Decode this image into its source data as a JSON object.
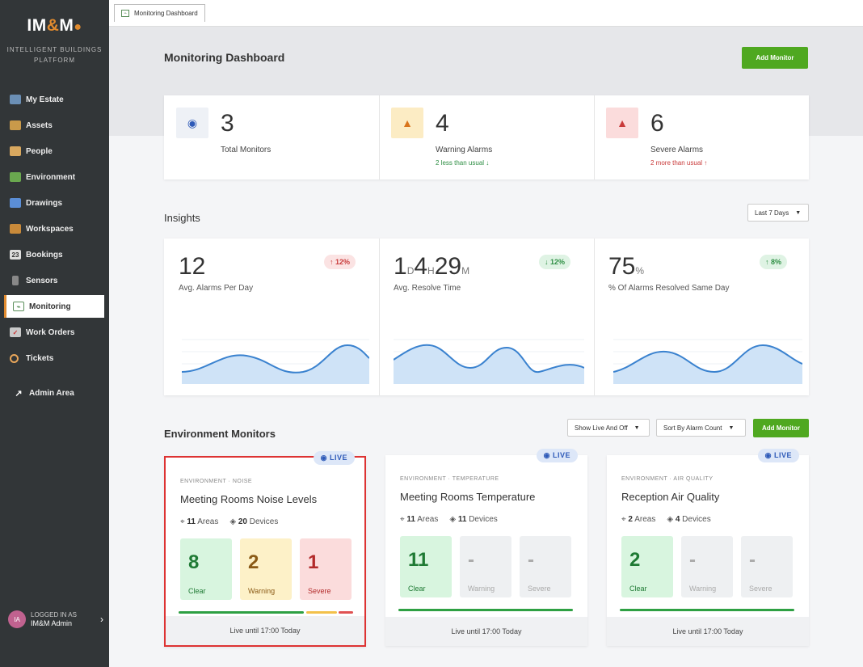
{
  "sidebar": {
    "logo_main": "IM",
    "logo_amp": "&",
    "logo_end": "M",
    "subtitle": "INTELLIGENT BUILDINGS PLATFORM",
    "items": [
      {
        "label": "My Estate",
        "icon": "building-icon"
      },
      {
        "label": "Assets",
        "icon": "box-icon"
      },
      {
        "label": "People",
        "icon": "people-icon"
      },
      {
        "label": "Environment",
        "icon": "plant-icon"
      },
      {
        "label": "Drawings",
        "icon": "image-icon"
      },
      {
        "label": "Workspaces",
        "icon": "desk-icon"
      },
      {
        "label": "Bookings",
        "icon": "calendar-icon"
      },
      {
        "label": "Sensors",
        "icon": "sensor-icon"
      },
      {
        "label": "Monitoring",
        "icon": "pulse-icon"
      },
      {
        "label": "Work Orders",
        "icon": "clipboard-icon"
      },
      {
        "label": "Tickets",
        "icon": "ticket-icon"
      }
    ],
    "admin": "Admin Area",
    "user": {
      "initials": "IA",
      "logged_in_as": "LOGGED IN AS",
      "name": "IM&M Admin"
    }
  },
  "tab": {
    "label": "Monitoring Dashboard"
  },
  "header": {
    "title": "Monitoring Dashboard",
    "add_button": "Add Monitor"
  },
  "stats": [
    {
      "value": "3",
      "label": "Total Monitors",
      "sub": ""
    },
    {
      "value": "4",
      "label": "Warning Alarms",
      "sub": "2 less than usual ↓"
    },
    {
      "value": "6",
      "label": "Severe Alarms",
      "sub": "2 more than usual ↑"
    }
  ],
  "insights": {
    "title": "Insights",
    "range": "Last 7 Days",
    "items": [
      {
        "value": "12",
        "label": "Avg. Alarms Per Day",
        "change": "↑ 12%"
      },
      {
        "label": "Avg. Resolve Time",
        "d": "1",
        "h": "4",
        "m": "29",
        "d_unit": "D",
        "h_unit": "H",
        "m_unit": "M",
        "change": "↓ 12%"
      },
      {
        "value": "75",
        "unit": "%",
        "label": "% Of Alarms Resolved Same Day",
        "change": "↑ 8%"
      }
    ]
  },
  "env": {
    "title": "Environment Monitors",
    "filter": "Show Live And Off",
    "sort": "Sort By Alarm Count",
    "add_button": "Add Monitor",
    "monitors": [
      {
        "live": "LIVE",
        "category": "ENVIRONMENT · NOISE",
        "title": "Meeting Rooms Noise Levels",
        "areas": "11",
        "areas_label": "Areas",
        "devices": "20",
        "devices_label": "Devices",
        "clear": "8",
        "warning": "2",
        "severe": "1",
        "clear_label": "Clear",
        "warning_label": "Warning",
        "severe_label": "Severe",
        "footer": "Live until 17:00 Today"
      },
      {
        "live": "LIVE",
        "category": "ENVIRONMENT · TEMPERATURE",
        "title": "Meeting Rooms Temperature",
        "areas": "11",
        "areas_label": "Areas",
        "devices": "11",
        "devices_label": "Devices",
        "clear": "11",
        "warning": "-",
        "severe": "-",
        "clear_label": "Clear",
        "warning_label": "Warning",
        "severe_label": "Severe",
        "footer": "Live until 17:00 Today"
      },
      {
        "live": "LIVE",
        "category": "ENVIRONMENT · AIR QUALITY",
        "title": "Reception Air Quality",
        "areas": "2",
        "areas_label": "Areas",
        "devices": "4",
        "devices_label": "Devices",
        "clear": "2",
        "warning": "-",
        "severe": "-",
        "clear_label": "Clear",
        "warning_label": "Warning",
        "severe_label": "Severe",
        "footer": "Live until 17:00 Today"
      }
    ]
  },
  "colors": {
    "accent": "#4fa820",
    "sidebar": "#323638",
    "warning": "#f3c14a",
    "severe": "#e05252",
    "clear": "#2ea043"
  }
}
